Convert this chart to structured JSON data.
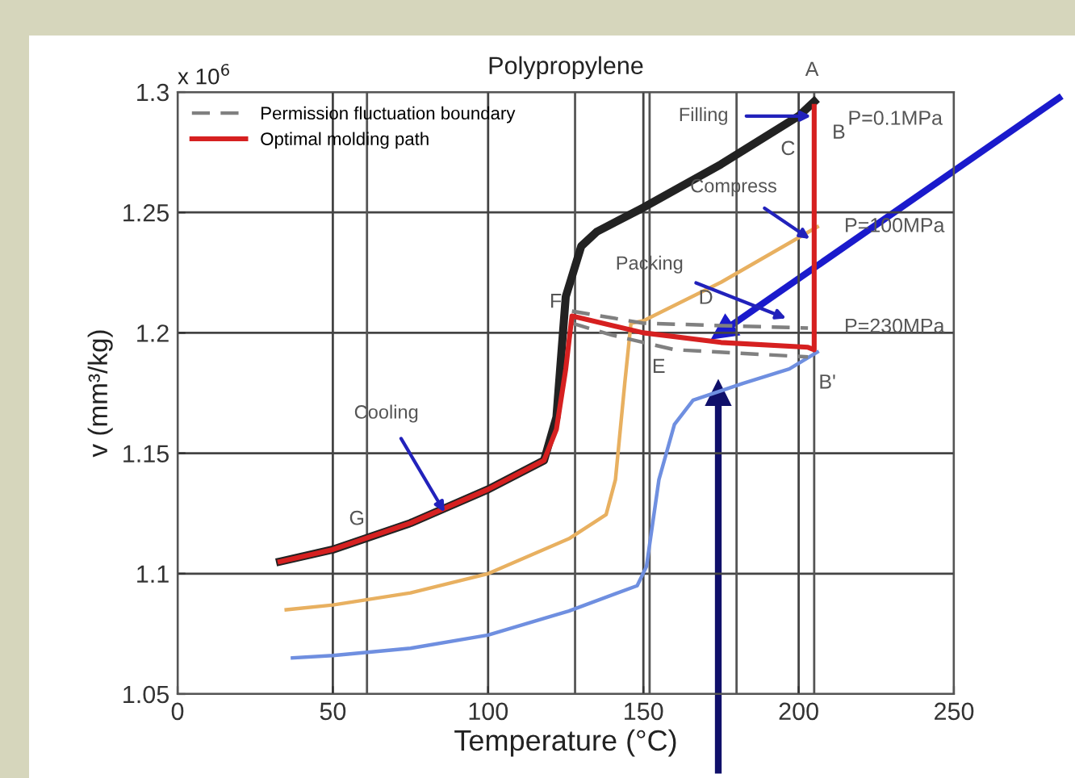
{
  "chart_data": {
    "type": "line",
    "title": "Polypropylene",
    "xlabel": "Temperature (°C)",
    "ylabel": "v (mm³/kg)",
    "xlim": [
      0,
      250
    ],
    "xticks": [
      0,
      50,
      100,
      150,
      200,
      250
    ],
    "ylim": [
      1.05,
      1.3
    ],
    "yticks": [
      1.05,
      1.1,
      1.15,
      1.2,
      1.25,
      1.3
    ],
    "grid": true,
    "legend": "top left",
    "marker": "none",
    "series": [
      {
        "color": "#222222",
        "line_style": "solid",
        "x": [
          33,
          50,
          75,
          100,
          118,
          122,
          125,
          130,
          135,
          150,
          175,
          200,
          205
        ],
        "values": [
          1.105,
          1.11,
          1.121,
          1.135,
          1.147,
          1.165,
          1.215,
          1.236,
          1.242,
          1.252,
          1.27,
          1.29,
          1.296
        ]
      },
      {
        "color": "#e8b060",
        "line_style": "solid",
        "x": [
          35,
          50,
          75,
          100,
          126,
          138,
          141,
          144,
          146,
          150,
          175,
          206
        ],
        "values": [
          1.085,
          1.087,
          1.092,
          1.1,
          1.1145,
          1.1245,
          1.139,
          1.179,
          1.204,
          1.205,
          1.221,
          1.244
        ]
      },
      {
        "color": "#6f8fe0",
        "line_style": "solid",
        "x": [
          37,
          50,
          75,
          100,
          126,
          148,
          151,
          155,
          160,
          166,
          182,
          197,
          206
        ],
        "values": [
          1.065,
          1.066,
          1.069,
          1.0745,
          1.0845,
          1.095,
          1.103,
          1.139,
          1.162,
          1.172,
          1.179,
          1.185,
          1.192
        ]
      },
      {
        "name": "Permission fluctuation boundary",
        "color": "#808080",
        "line_style": "dashed",
        "x": [
          127,
          150,
          175,
          203
        ],
        "values": [
          1.209,
          1.204,
          1.203,
          1.202
        ]
      },
      {
        "color": "#808080",
        "line_style": "dashed",
        "x": [
          127,
          140,
          160,
          203
        ],
        "values": [
          1.204,
          1.199,
          1.193,
          1.19
        ]
      },
      {
        "name": "Optimal molding path",
        "color": "#d62020",
        "line_style": "solid",
        "x": [
          33,
          50,
          75,
          100,
          118,
          122,
          125,
          127,
          150,
          175,
          203,
          205,
          205
        ],
        "values": [
          1.105,
          1.11,
          1.121,
          1.135,
          1.147,
          1.16,
          1.185,
          1.207,
          1.2,
          1.196,
          1.194,
          1.193,
          1.294
        ]
      }
    ],
    "ref_lines": [
      {
        "axis": "x",
        "value": 61,
        "color": "#555555"
      },
      {
        "axis": "x",
        "value": 128,
        "color": "#555555"
      },
      {
        "axis": "x",
        "value": 152,
        "color": "#555555"
      },
      {
        "axis": "x",
        "value": 180,
        "color": "#555555"
      },
      {
        "axis": "x",
        "value": 205,
        "color": "#555555"
      }
    ],
    "annotations": [
      "x 10$^{6}$",
      {
        "text": "A",
        "x": 205,
        "y": 1.294
      },
      {
        "text": "B",
        "x": 205,
        "y": 1.294
      },
      {
        "text": "P=0.1MPa",
        "x": 205,
        "y": 1.296
      },
      {
        "text": "C",
        "x": 200,
        "y": 1.29
      },
      {
        "text": "P=100MPa",
        "x": 206,
        "y": 1.244
      },
      {
        "text": "P=230MPa",
        "x": 206,
        "y": 1.192
      },
      {
        "text": "F",
        "x": 127,
        "y": 1.207
      },
      {
        "text": "E",
        "x": 160,
        "y": 1.193
      },
      {
        "text": "D",
        "x": 175,
        "y": 1.203
      },
      {
        "text": "B'",
        "x": 205,
        "y": 1.193
      },
      {
        "text": "G",
        "x": 61,
        "y": 1.115
      },
      {
        "text": "Filling",
        "x": 204,
        "y": 1.29
      },
      {
        "text": "Compress",
        "x": 203.6,
        "y": 1.239
      },
      {
        "text": "Packing",
        "x": 196,
        "y": 1.206
      },
      {
        "text": "Cooling",
        "x": 86,
        "y": 1.1255
      }
    ]
  }
}
